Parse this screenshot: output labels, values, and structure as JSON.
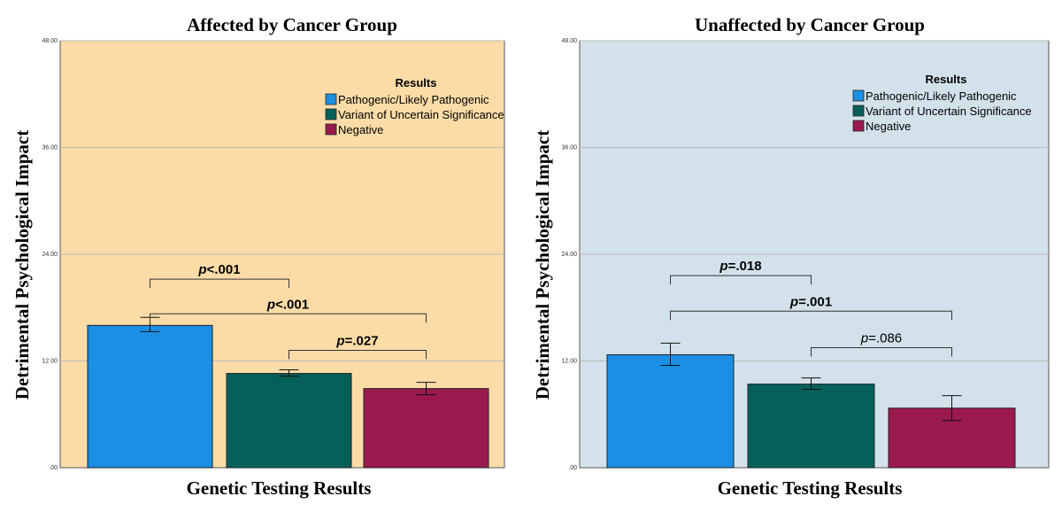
{
  "chart_data": [
    {
      "type": "bar",
      "title": "Affected by Cancer Group",
      "xlabel": "Genetic Testing Results",
      "ylabel": "Detrimental Psychological Impact",
      "ylim": [
        0,
        48
      ],
      "yticks": [
        ".00",
        "12.00",
        "24.00",
        "36.00",
        "48.00"
      ],
      "grid": true,
      "background": "#fbdca7",
      "legend": {
        "title": "Results",
        "placement": "top-right",
        "entries": [
          {
            "label": "Pathogenic/Likely Pathogenic",
            "color": "#1b8fe3"
          },
          {
            "label": "Variant of Uncertain Significance",
            "color": "#05605a"
          },
          {
            "label": "Negative",
            "color": "#9a1a4e"
          }
        ]
      },
      "categories": [
        "Pathogenic/Likely Pathogenic",
        "Variant of Uncertain Significance",
        "Negative"
      ],
      "values": [
        16.0,
        10.6,
        8.9
      ],
      "error_low": [
        15.3,
        10.3,
        8.2
      ],
      "error_high": [
        16.9,
        11.0,
        9.6
      ],
      "comparisons": [
        {
          "from": 0,
          "to": 1,
          "label": "p<.001",
          "bold": true,
          "y": 21.2
        },
        {
          "from": 0,
          "to": 2,
          "label": "p<.001",
          "bold": true,
          "y": 17.3
        },
        {
          "from": 1,
          "to": 2,
          "label": "p=.027",
          "bold": true,
          "y": 13.2
        }
      ]
    },
    {
      "type": "bar",
      "title": "Unaffected by Cancer Group",
      "xlabel": "Genetic Testing Results",
      "ylabel": "Detrimental Psychological Impact",
      "ylim": [
        0,
        48
      ],
      "yticks": [
        ".00",
        "12.00",
        "24.00",
        "36.00",
        "48.00"
      ],
      "grid": true,
      "background": "#d3e1ea",
      "legend": {
        "title": "Results",
        "placement": "top-right",
        "entries": [
          {
            "label": "Pathogenic/Likely Pathogenic",
            "color": "#1b8fe3"
          },
          {
            "label": "Variant of Uncertain Significance",
            "color": "#05605a"
          },
          {
            "label": "Negative",
            "color": "#9a1a4e"
          }
        ]
      },
      "categories": [
        "Pathogenic/Likely Pathogenic",
        "Variant of Uncertain Significance",
        "Negative"
      ],
      "values": [
        12.7,
        9.4,
        6.7
      ],
      "error_low": [
        11.5,
        8.8,
        5.3
      ],
      "error_high": [
        14.0,
        10.1,
        8.1
      ],
      "comparisons": [
        {
          "from": 0,
          "to": 1,
          "label": "p=.018",
          "bold": true,
          "y": 21.6
        },
        {
          "from": 0,
          "to": 2,
          "label": "p=.001",
          "bold": true,
          "y": 17.6
        },
        {
          "from": 1,
          "to": 2,
          "label": "p=.086",
          "bold": false,
          "y": 13.5
        }
      ]
    }
  ]
}
